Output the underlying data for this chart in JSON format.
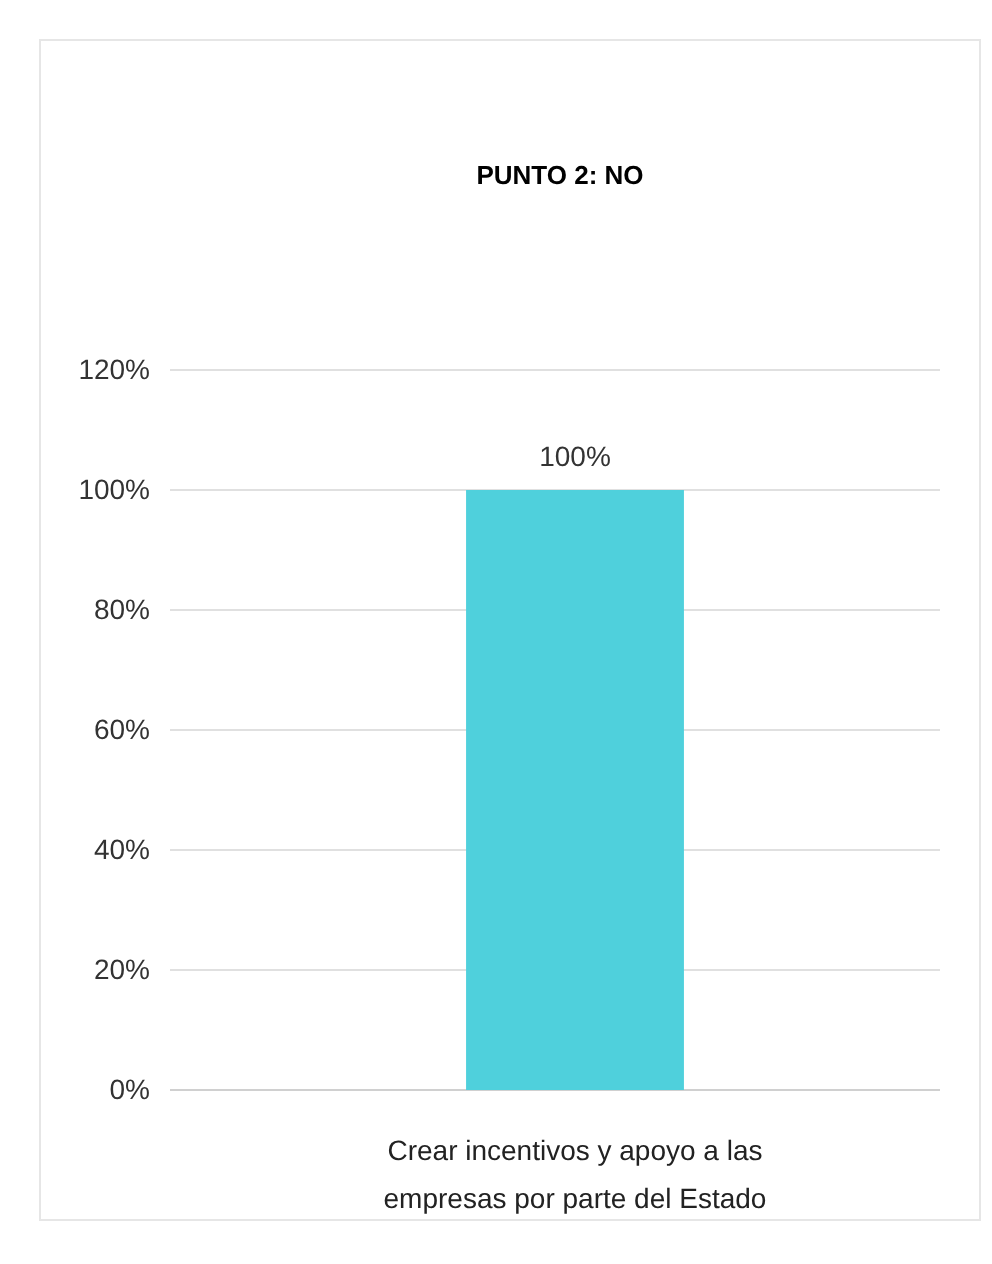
{
  "chart_data": {
    "type": "bar",
    "title": "PUNTO  2: NO",
    "categories": [
      "Crear incentivos y apoyo a las empresas por parte del Estado"
    ],
    "values": [
      100
    ],
    "value_labels": [
      "100%"
    ],
    "color": "#4fd0dc",
    "ylim": [
      0,
      120
    ],
    "yticks": [
      {
        "value": 0,
        "label": "0%"
      },
      {
        "value": 20,
        "label": "20%"
      },
      {
        "value": 40,
        "label": "40%"
      },
      {
        "value": 60,
        "label": "60%"
      },
      {
        "value": 80,
        "label": "80%"
      },
      {
        "value": 100,
        "label": "100%"
      },
      {
        "value": 120,
        "label": "120%"
      }
    ],
    "grid": "y"
  }
}
